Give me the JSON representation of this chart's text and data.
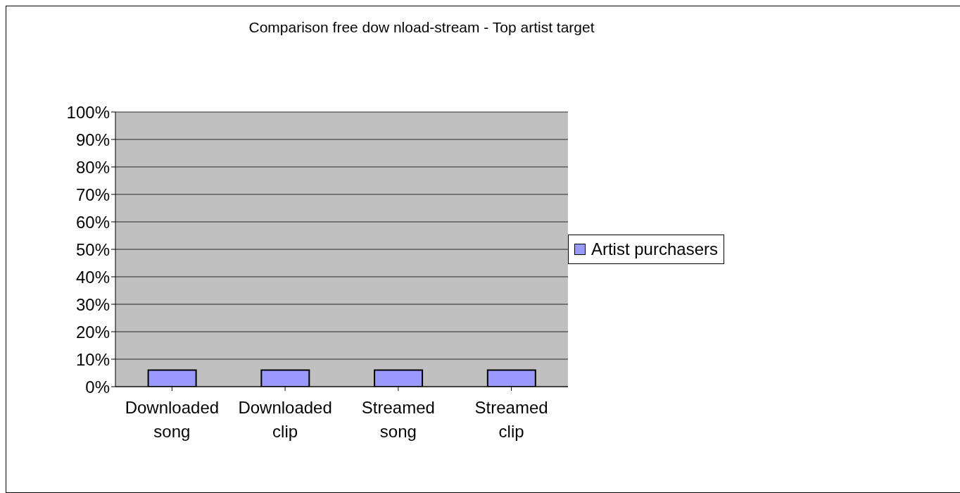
{
  "chart_data": {
    "type": "bar",
    "title": "Comparison free dow nload-stream - Top artist target",
    "categories": [
      "Downloaded song",
      "Downloaded clip",
      "Streamed song",
      "Streamed clip"
    ],
    "series": [
      {
        "name": "Artist purchasers",
        "color": "#9999ff",
        "values": [
          6,
          6,
          6,
          6
        ]
      }
    ],
    "ylim": [
      0,
      100
    ],
    "yticks": [
      {
        "value": 0,
        "label": "0%"
      },
      {
        "value": 10,
        "label": "10%"
      },
      {
        "value": 20,
        "label": "20%"
      },
      {
        "value": 30,
        "label": "30%"
      },
      {
        "value": 40,
        "label": "40%"
      },
      {
        "value": 50,
        "label": "50%"
      },
      {
        "value": 60,
        "label": "60%"
      },
      {
        "value": 70,
        "label": "70%"
      },
      {
        "value": 80,
        "label": "80%"
      },
      {
        "value": 90,
        "label": "90%"
      },
      {
        "value": 100,
        "label": "100%"
      }
    ],
    "grid": "y",
    "legend": "right"
  }
}
